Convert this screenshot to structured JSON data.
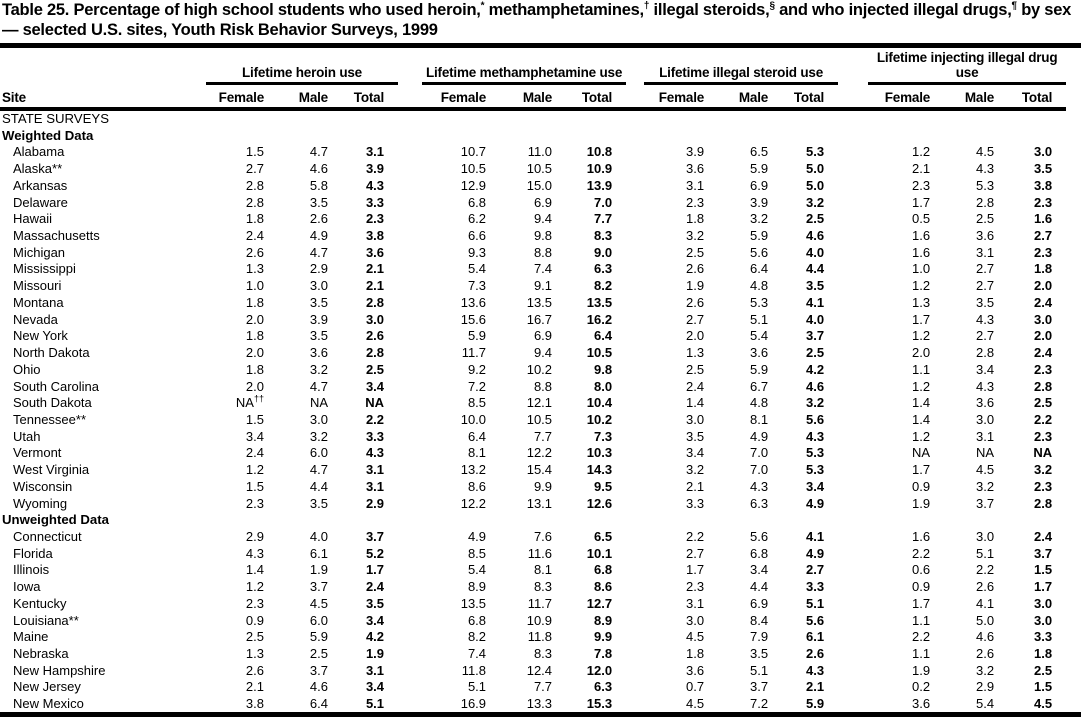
{
  "document": {
    "title_segments": [
      {
        "text": "Table 25. Percentage of high school students who used heroin,"
      },
      {
        "text": "*",
        "sup": true
      },
      {
        "text": " methamphetamines,"
      },
      {
        "text": "†",
        "sup": true
      },
      {
        "text": " illegal steroids,"
      },
      {
        "text": "§",
        "sup": true
      },
      {
        "text": " and who injected illegal drugs,"
      },
      {
        "text": "¶",
        "sup": true
      },
      {
        "text": " by sex — selected U.S. sites, Youth Risk Behavior Surveys, 1999"
      }
    ]
  },
  "table": {
    "site_header": "Site",
    "sub_headers": [
      "Female",
      "Male",
      "Total"
    ],
    "groups": [
      "Lifetime heroin use",
      "Lifetime methamphetamine use",
      "Lifetime illegal steroid use",
      "Lifetime injecting illegal drug use"
    ],
    "survey_section": "STATE SURVEYS",
    "sections": [
      {
        "label": "Weighted Data",
        "rows": [
          {
            "site": "Alabama",
            "values": [
              "1.5",
              "4.7",
              "3.1",
              "10.7",
              "11.0",
              "10.8",
              "3.9",
              "6.5",
              "5.3",
              "1.2",
              "4.5",
              "3.0"
            ]
          },
          {
            "site": "Alaska**",
            "values": [
              "2.7",
              "4.6",
              "3.9",
              "10.5",
              "10.5",
              "10.9",
              "3.6",
              "5.9",
              "5.0",
              "2.1",
              "4.3",
              "3.5"
            ]
          },
          {
            "site": "Arkansas",
            "values": [
              "2.8",
              "5.8",
              "4.3",
              "12.9",
              "15.0",
              "13.9",
              "3.1",
              "6.9",
              "5.0",
              "2.3",
              "5.3",
              "3.8"
            ]
          },
          {
            "site": "Delaware",
            "values": [
              "2.8",
              "3.5",
              "3.3",
              "6.8",
              "6.9",
              "7.0",
              "2.3",
              "3.9",
              "3.2",
              "1.7",
              "2.8",
              "2.3"
            ]
          },
          {
            "site": "Hawaii",
            "values": [
              "1.8",
              "2.6",
              "2.3",
              "6.2",
              "9.4",
              "7.7",
              "1.8",
              "3.2",
              "2.5",
              "0.5",
              "2.5",
              "1.6"
            ]
          },
          {
            "site": "Massachusetts",
            "values": [
              "2.4",
              "4.9",
              "3.8",
              "6.6",
              "9.8",
              "8.3",
              "3.2",
              "5.9",
              "4.6",
              "1.6",
              "3.6",
              "2.7"
            ]
          },
          {
            "site": "Michigan",
            "values": [
              "2.6",
              "4.7",
              "3.6",
              "9.3",
              "8.8",
              "9.0",
              "2.5",
              "5.6",
              "4.0",
              "1.6",
              "3.1",
              "2.3"
            ]
          },
          {
            "site": "Mississippi",
            "values": [
              "1.3",
              "2.9",
              "2.1",
              "5.4",
              "7.4",
              "6.3",
              "2.6",
              "6.4",
              "4.4",
              "1.0",
              "2.7",
              "1.8"
            ]
          },
          {
            "site": "Missouri",
            "values": [
              "1.0",
              "3.0",
              "2.1",
              "7.3",
              "9.1",
              "8.2",
              "1.9",
              "4.8",
              "3.5",
              "1.2",
              "2.7",
              "2.0"
            ]
          },
          {
            "site": "Montana",
            "values": [
              "1.8",
              "3.5",
              "2.8",
              "13.6",
              "13.5",
              "13.5",
              "2.6",
              "5.3",
              "4.1",
              "1.3",
              "3.5",
              "2.4"
            ]
          },
          {
            "site": "Nevada",
            "values": [
              "2.0",
              "3.9",
              "3.0",
              "15.6",
              "16.7",
              "16.2",
              "2.7",
              "5.1",
              "4.0",
              "1.7",
              "4.3",
              "3.0"
            ]
          },
          {
            "site": "New York",
            "values": [
              "1.8",
              "3.5",
              "2.6",
              "5.9",
              "6.9",
              "6.4",
              "2.0",
              "5.4",
              "3.7",
              "1.2",
              "2.7",
              "2.0"
            ]
          },
          {
            "site": "North Dakota",
            "values": [
              "2.0",
              "3.6",
              "2.8",
              "11.7",
              "9.4",
              "10.5",
              "1.3",
              "3.6",
              "2.5",
              "2.0",
              "2.8",
              "2.4"
            ]
          },
          {
            "site": "Ohio",
            "values": [
              "1.8",
              "3.2",
              "2.5",
              "9.2",
              "10.2",
              "9.8",
              "2.5",
              "5.9",
              "4.2",
              "1.1",
              "3.4",
              "2.3"
            ]
          },
          {
            "site": "South Carolina",
            "values": [
              "2.0",
              "4.7",
              "3.4",
              "7.2",
              "8.8",
              "8.0",
              "2.4",
              "6.7",
              "4.6",
              "1.2",
              "4.3",
              "2.8"
            ]
          },
          {
            "site": "South Dakota",
            "values": [
              "NA††",
              "NA",
              "NA",
              "8.5",
              "12.1",
              "10.4",
              "1.4",
              "4.8",
              "3.2",
              "1.4",
              "3.6",
              "2.5"
            ]
          },
          {
            "site": "Tennessee**",
            "values": [
              "1.5",
              "3.0",
              "2.2",
              "10.0",
              "10.5",
              "10.2",
              "3.0",
              "8.1",
              "5.6",
              "1.4",
              "3.0",
              "2.2"
            ]
          },
          {
            "site": "Utah",
            "values": [
              "3.4",
              "3.2",
              "3.3",
              "6.4",
              "7.7",
              "7.3",
              "3.5",
              "4.9",
              "4.3",
              "1.2",
              "3.1",
              "2.3"
            ]
          },
          {
            "site": "Vermont",
            "values": [
              "2.4",
              "6.0",
              "4.3",
              "8.1",
              "12.2",
              "10.3",
              "3.4",
              "7.0",
              "5.3",
              "NA",
              "NA",
              "NA"
            ]
          },
          {
            "site": "West Virginia",
            "values": [
              "1.2",
              "4.7",
              "3.1",
              "13.2",
              "15.4",
              "14.3",
              "3.2",
              "7.0",
              "5.3",
              "1.7",
              "4.5",
              "3.2"
            ]
          },
          {
            "site": "Wisconsin",
            "values": [
              "1.5",
              "4.4",
              "3.1",
              "8.6",
              "9.9",
              "9.5",
              "2.1",
              "4.3",
              "3.4",
              "0.9",
              "3.2",
              "2.3"
            ]
          },
          {
            "site": "Wyoming",
            "values": [
              "2.3",
              "3.5",
              "2.9",
              "12.2",
              "13.1",
              "12.6",
              "3.3",
              "6.3",
              "4.9",
              "1.9",
              "3.7",
              "2.8"
            ]
          }
        ]
      },
      {
        "label": "Unweighted Data",
        "rows": [
          {
            "site": "Connecticut",
            "values": [
              "2.9",
              "4.0",
              "3.7",
              "4.9",
              "7.6",
              "6.5",
              "2.2",
              "5.6",
              "4.1",
              "1.6",
              "3.0",
              "2.4"
            ]
          },
          {
            "site": "Florida",
            "values": [
              "4.3",
              "6.1",
              "5.2",
              "8.5",
              "11.6",
              "10.1",
              "2.7",
              "6.8",
              "4.9",
              "2.2",
              "5.1",
              "3.7"
            ]
          },
          {
            "site": "Illinois",
            "values": [
              "1.4",
              "1.9",
              "1.7",
              "5.4",
              "8.1",
              "6.8",
              "1.7",
              "3.4",
              "2.7",
              "0.6",
              "2.2",
              "1.5"
            ]
          },
          {
            "site": "Iowa",
            "values": [
              "1.2",
              "3.7",
              "2.4",
              "8.9",
              "8.3",
              "8.6",
              "2.3",
              "4.4",
              "3.3",
              "0.9",
              "2.6",
              "1.7"
            ]
          },
          {
            "site": "Kentucky",
            "values": [
              "2.3",
              "4.5",
              "3.5",
              "13.5",
              "11.7",
              "12.7",
              "3.1",
              "6.9",
              "5.1",
              "1.7",
              "4.1",
              "3.0"
            ]
          },
          {
            "site": "Louisiana**",
            "values": [
              "0.9",
              "6.0",
              "3.4",
              "6.8",
              "10.9",
              "8.9",
              "3.0",
              "8.4",
              "5.6",
              "1.1",
              "5.0",
              "3.0"
            ]
          },
          {
            "site": "Maine",
            "values": [
              "2.5",
              "5.9",
              "4.2",
              "8.2",
              "11.8",
              "9.9",
              "4.5",
              "7.9",
              "6.1",
              "2.2",
              "4.6",
              "3.3"
            ]
          },
          {
            "site": "Nebraska",
            "values": [
              "1.3",
              "2.5",
              "1.9",
              "7.4",
              "8.3",
              "7.8",
              "1.8",
              "3.5",
              "2.6",
              "1.1",
              "2.6",
              "1.8"
            ]
          },
          {
            "site": "New Hampshire",
            "values": [
              "2.6",
              "3.7",
              "3.1",
              "11.8",
              "12.4",
              "12.0",
              "3.6",
              "5.1",
              "4.3",
              "1.9",
              "3.2",
              "2.5"
            ]
          },
          {
            "site": "New Jersey",
            "values": [
              "2.1",
              "4.6",
              "3.4",
              "5.1",
              "7.7",
              "6.3",
              "0.7",
              "3.7",
              "2.1",
              "0.2",
              "2.9",
              "1.5"
            ]
          },
          {
            "site": "New Mexico",
            "values": [
              "3.8",
              "6.4",
              "5.1",
              "16.9",
              "13.3",
              "15.3",
              "4.5",
              "7.2",
              "5.9",
              "3.6",
              "5.4",
              "4.5"
            ]
          }
        ]
      }
    ]
  }
}
